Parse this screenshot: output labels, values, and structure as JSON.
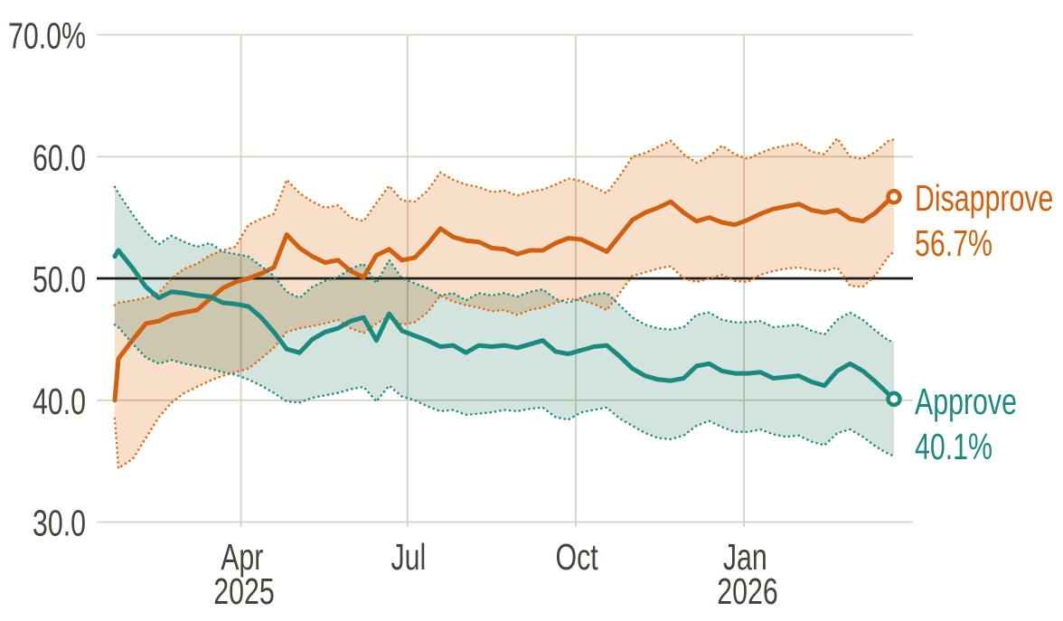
{
  "chart_data": {
    "type": "line",
    "x_unit": "days since 2025-01-20",
    "x": [
      2,
      4,
      12,
      19,
      26,
      33,
      40,
      47,
      54,
      61,
      68,
      75,
      82,
      89,
      96,
      103,
      110,
      117,
      124,
      131,
      138,
      145,
      152,
      159,
      166,
      173,
      180,
      187,
      194,
      201,
      208,
      215,
      222,
      229,
      236,
      243,
      250,
      257,
      264,
      271,
      278,
      285,
      292,
      299,
      306,
      313,
      320,
      327,
      334,
      341,
      348,
      355,
      362,
      369,
      376,
      383,
      390,
      397,
      404,
      411,
      418,
      425,
      428
    ],
    "xlim_days": [
      2,
      428
    ],
    "ylim": [
      30,
      70
    ],
    "grid_color": "#d7d2c4",
    "axis_text_color": "#48423b",
    "reference_line": {
      "value": 50,
      "color": "#1c1917"
    },
    "y_axis": {
      "ticks": [
        {
          "value": 30,
          "label": "30.0"
        },
        {
          "value": 40,
          "label": "40.0"
        },
        {
          "value": 50,
          "label": "50.0"
        },
        {
          "value": 60,
          "label": "60.0"
        },
        {
          "value": 70,
          "label": "70.0%"
        }
      ]
    },
    "x_axis": {
      "ticks": [
        {
          "day": 71,
          "label": "Apr",
          "sublabel": "2025"
        },
        {
          "day": 162,
          "label": "Jul",
          "sublabel": ""
        },
        {
          "day": 254,
          "label": "Oct",
          "sublabel": ""
        },
        {
          "day": 346,
          "label": "Jan",
          "sublabel": "2026"
        }
      ]
    },
    "series": [
      {
        "name": "Disapprove",
        "end_value": "56.7%",
        "color": "#d2600e",
        "dotted_color": "#e06d15",
        "band_fill": "#f8dfca",
        "values": [
          40.0,
          43.4,
          45.0,
          46.3,
          46.5,
          47.0,
          47.2,
          47.4,
          48.3,
          49.2,
          49.7,
          50.0,
          50.4,
          50.9,
          53.6,
          52.5,
          51.8,
          51.3,
          51.5,
          50.6,
          50.1,
          51.9,
          52.4,
          51.5,
          51.7,
          52.8,
          54.1,
          53.4,
          53.1,
          53.0,
          52.5,
          52.4,
          52.0,
          52.3,
          52.3,
          52.9,
          53.3,
          53.2,
          52.7,
          52.2,
          53.5,
          54.8,
          55.4,
          55.8,
          56.3,
          55.4,
          54.7,
          55.0,
          54.6,
          54.4,
          54.8,
          55.3,
          55.7,
          55.9,
          56.1,
          55.6,
          55.4,
          55.6,
          54.9,
          54.7,
          55.4,
          56.4,
          56.7
        ],
        "band_hi": [
          47.8,
          48.0,
          48.2,
          48.4,
          48.8,
          50.0,
          50.8,
          51.2,
          51.9,
          52.3,
          52.6,
          54.4,
          54.9,
          55.3,
          58.1,
          57.0,
          56.3,
          55.8,
          56.0,
          55.0,
          54.7,
          56.2,
          57.6,
          56.4,
          56.3,
          57.2,
          58.7,
          58.1,
          57.7,
          57.5,
          57.1,
          57.2,
          56.8,
          57.1,
          57.3,
          57.7,
          58.2,
          58.0,
          57.5,
          57.0,
          58.4,
          60.0,
          60.3,
          60.8,
          61.3,
          60.2,
          59.5,
          60.0,
          60.9,
          60.2,
          59.8,
          60.3,
          60.7,
          60.9,
          61.1,
          60.4,
          60.2,
          61.5,
          60.0,
          59.8,
          60.4,
          61.3,
          61.4
        ],
        "band_lo": [
          38.5,
          34.4,
          35.2,
          36.9,
          38.6,
          39.8,
          40.6,
          41.1,
          41.6,
          42.0,
          42.3,
          42.6,
          43.4,
          44.3,
          45.6,
          45.9,
          46.1,
          46.3,
          46.6,
          45.9,
          45.5,
          46.3,
          46.9,
          46.2,
          46.4,
          47.2,
          48.6,
          48.1,
          47.8,
          47.6,
          47.3,
          47.4,
          47.0,
          47.4,
          47.6,
          48.0,
          48.3,
          48.2,
          47.9,
          47.4,
          48.8,
          50.2,
          50.5,
          50.8,
          51.0,
          50.0,
          49.7,
          50.0,
          50.3,
          49.8,
          49.7,
          50.3,
          50.6,
          50.8,
          50.9,
          50.7,
          50.6,
          50.9,
          49.4,
          49.3,
          50.3,
          51.8,
          52.2
        ]
      },
      {
        "name": "Approve",
        "end_value": "40.1%",
        "color": "#1a8a7f",
        "dotted_color": "#1f8e80",
        "band_fill": "#d3e4df",
        "values": [
          51.8,
          52.3,
          50.8,
          49.3,
          48.4,
          48.9,
          48.8,
          48.6,
          48.5,
          48.0,
          47.9,
          47.7,
          46.8,
          45.6,
          44.2,
          43.9,
          45.0,
          45.6,
          45.9,
          46.5,
          46.8,
          44.9,
          47.1,
          45.7,
          45.3,
          44.9,
          44.4,
          44.5,
          43.9,
          44.5,
          44.4,
          44.5,
          44.3,
          44.6,
          44.9,
          44.0,
          43.8,
          44.1,
          44.4,
          44.5,
          43.6,
          42.6,
          42.0,
          41.7,
          41.6,
          41.8,
          42.8,
          43.0,
          42.4,
          42.2,
          42.2,
          42.3,
          41.8,
          41.9,
          42.0,
          41.5,
          41.2,
          42.4,
          43.0,
          42.4,
          41.5,
          40.5,
          40.1
        ],
        "band_hi": [
          57.5,
          57.0,
          55.2,
          53.8,
          52.8,
          53.5,
          53.0,
          52.6,
          52.9,
          52.2,
          52.0,
          51.8,
          51.0,
          50.2,
          48.9,
          48.4,
          49.3,
          49.8,
          50.1,
          50.8,
          51.2,
          49.6,
          51.5,
          50.0,
          49.6,
          49.2,
          48.6,
          48.8,
          48.2,
          48.8,
          48.6,
          48.8,
          48.5,
          48.9,
          49.1,
          48.3,
          48.0,
          48.4,
          48.7,
          48.8,
          47.8,
          46.8,
          46.2,
          45.9,
          45.8,
          46.0,
          47.0,
          47.2,
          46.6,
          46.4,
          46.4,
          46.5,
          46.0,
          46.1,
          46.2,
          45.7,
          45.4,
          46.6,
          47.2,
          46.6,
          45.7,
          44.9,
          44.8
        ],
        "band_lo": [
          46.2,
          46.0,
          44.6,
          43.5,
          43.0,
          43.3,
          43.0,
          42.8,
          42.6,
          42.3,
          42.1,
          41.7,
          41.2,
          40.6,
          39.9,
          39.8,
          40.2,
          40.4,
          40.6,
          40.9,
          41.1,
          39.9,
          41.2,
          40.3,
          40.0,
          39.5,
          39.1,
          39.2,
          38.8,
          38.9,
          39.0,
          39.2,
          39.1,
          39.3,
          39.4,
          38.6,
          38.4,
          39.0,
          39.2,
          39.4,
          38.5,
          37.9,
          37.3,
          36.9,
          36.8,
          37.1,
          37.9,
          38.3,
          37.8,
          37.4,
          37.4,
          37.6,
          37.2,
          37.0,
          37.1,
          36.6,
          36.3,
          37.3,
          37.6,
          37.0,
          36.2,
          35.6,
          35.4
        ]
      }
    ]
  }
}
